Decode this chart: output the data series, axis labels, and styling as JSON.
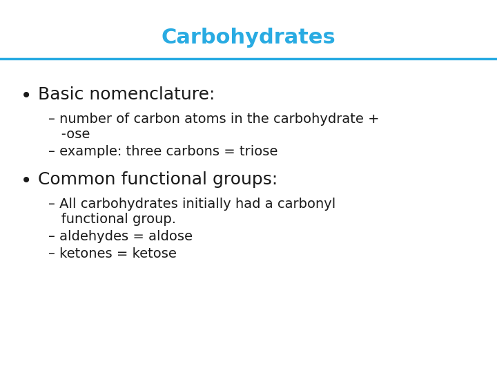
{
  "title": "Carbohydrates",
  "title_color": "#29ABE2",
  "title_fontsize": 22,
  "title_fontweight": "bold",
  "line_color": "#29ABE2",
  "background_color": "#ffffff",
  "bullet1": "Basic nomenclature:",
  "bullet_fontsize": 18,
  "sub1a_line1": "– number of carbon atoms in the carbohydrate +",
  "sub1a_line2": "   -ose",
  "sub1b": "– example: three carbons = triose",
  "sub_fontsize": 14,
  "bullet2": "Common functional groups:",
  "sub2a_line1": "– All carbohydrates initially had a carbonyl",
  "sub2a_line2": "   functional group.",
  "sub2b": "– aldehydes = aldose",
  "sub2c": "– ketones = ketose",
  "text_color": "#1a1a1a",
  "bullet_color": "#1a1a1a",
  "font_family": "DejaVu Sans"
}
